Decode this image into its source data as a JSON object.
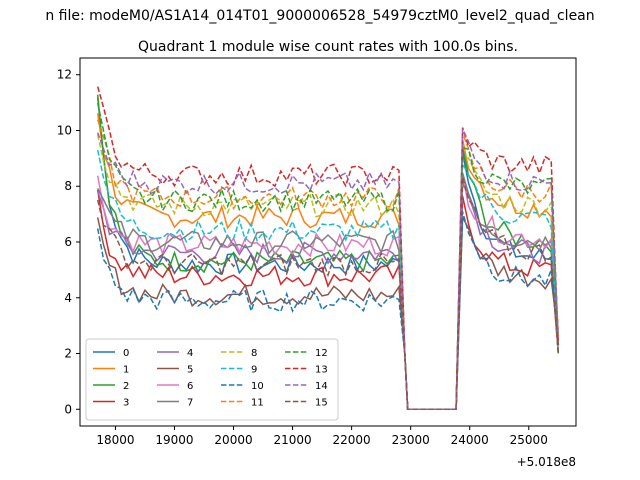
{
  "figure": {
    "suptitle": "n file: modeM0/AS1A14_014T01_9000006528_54979cztM0_level2_quad_clean",
    "title": "Quadrant 1 module wise count rates with 100.0s bins.",
    "offset_label": "+5.018e8"
  },
  "chart_data": {
    "type": "line",
    "x_offset": 501800000,
    "xlim": [
      17400,
      25800
    ],
    "ylim": [
      -0.6,
      12.6
    ],
    "x_ticks": [
      18000,
      19000,
      20000,
      21000,
      22000,
      23000,
      24000,
      25000
    ],
    "x_tick_labels": [
      "18000",
      "19000",
      "20000",
      "21000",
      "22000",
      "23000",
      "24000",
      "25000"
    ],
    "y_ticks": [
      0,
      2,
      4,
      6,
      8,
      10,
      12
    ],
    "y_tick_labels": [
      "0",
      "2",
      "4",
      "6",
      "8",
      "10",
      "12"
    ],
    "grid": false,
    "legend": {
      "placement": "lower-left",
      "columns": 4
    },
    "segments_shape": {
      "gap_start": 22850,
      "gap_end": 23800,
      "end": 25500
    },
    "series": [
      {
        "name": "0",
        "color": "#1f77b4",
        "style": "solid",
        "peak": 11.2,
        "plateau": 5.2,
        "post_peak": 9.5,
        "post_plateau": 5.4
      },
      {
        "name": "1",
        "color": "#ff7f0e",
        "style": "solid",
        "peak": 10.8,
        "plateau": 6.9,
        "post_peak": 9.7,
        "post_plateau": 7.2
      },
      {
        "name": "2",
        "color": "#2ca02c",
        "style": "solid",
        "peak": 11.3,
        "plateau": 5.3,
        "post_peak": 9.4,
        "post_plateau": 6.0
      },
      {
        "name": "3",
        "color": "#d62728",
        "style": "solid",
        "peak": 7.5,
        "plateau": 4.8,
        "post_peak": 7.4,
        "post_plateau": 5.0
      },
      {
        "name": "4",
        "color": "#9467bd",
        "style": "solid",
        "peak": 8.0,
        "plateau": 5.6,
        "post_peak": 8.5,
        "post_plateau": 5.6
      },
      {
        "name": "5",
        "color": "#8c564b",
        "style": "solid",
        "peak": 6.6,
        "plateau": 4.1,
        "post_peak": 7.2,
        "post_plateau": 4.7
      },
      {
        "name": "6",
        "color": "#e377c2",
        "style": "solid",
        "peak": 8.2,
        "plateau": 5.9,
        "post_peak": 8.3,
        "post_plateau": 6.1
      },
      {
        "name": "7",
        "color": "#7f7f7f",
        "style": "solid",
        "peak": 8.3,
        "plateau": 6.0,
        "post_peak": 8.5,
        "post_plateau": 6.0
      },
      {
        "name": "8",
        "color": "#bcbd22",
        "style": "dashed",
        "peak": 10.2,
        "plateau": 7.3,
        "post_peak": 9.3,
        "post_plateau": 7.3
      },
      {
        "name": "9",
        "color": "#17becf",
        "style": "dashed",
        "peak": 9.6,
        "plateau": 6.4,
        "post_peak": 9.2,
        "post_plateau": 6.8
      },
      {
        "name": "10",
        "color": "#1f77b4",
        "style": "dashed",
        "peak": 6.2,
        "plateau": 3.9,
        "post_peak": 7.3,
        "post_plateau": 4.6
      },
      {
        "name": "11",
        "color": "#ff7f0e",
        "style": "dashed",
        "peak": 10.4,
        "plateau": 7.6,
        "post_peak": 9.6,
        "post_plateau": 7.8
      },
      {
        "name": "12",
        "color": "#2ca02c",
        "style": "dashed",
        "peak": 11.0,
        "plateau": 7.5,
        "post_peak": 9.6,
        "post_plateau": 7.9
      },
      {
        "name": "13",
        "color": "#d62728",
        "style": "dashed",
        "peak": 11.9,
        "plateau": 8.4,
        "post_peak": 10.0,
        "post_plateau": 8.7
      },
      {
        "name": "14",
        "color": "#9467bd",
        "style": "dashed",
        "peak": 10.0,
        "plateau": 8.1,
        "post_peak": 9.9,
        "post_plateau": 8.1
      },
      {
        "name": "15",
        "color": "#8c564b",
        "style": "dashed",
        "peak": 7.8,
        "plateau": 5.2,
        "post_peak": 8.2,
        "post_plateau": 5.6
      }
    ]
  }
}
